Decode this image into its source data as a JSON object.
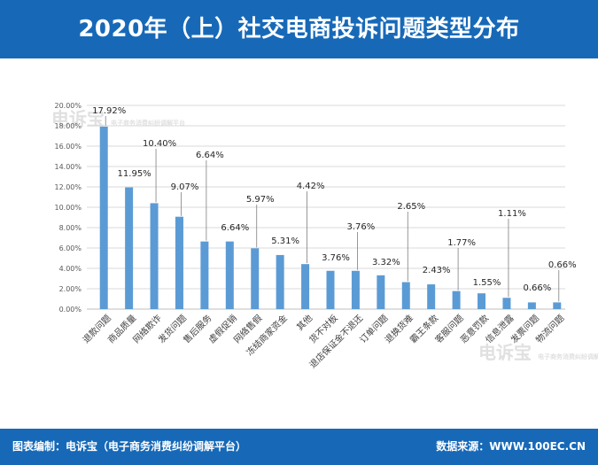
{
  "title": "2020年（上）社交电商投诉问题类型分布",
  "footer": {
    "credit": "图表编制：电诉宝（电子商务消费纠纷调解平台）",
    "source": "数据来源：WWW.100EC.CN"
  },
  "watermark": {
    "name": "电诉宝",
    "tagline": "电子商务消费纠纷调解平台"
  },
  "colors": {
    "header": "#1769b8",
    "bar": "#5b9bd5"
  },
  "chart_data": {
    "type": "bar",
    "title": "",
    "xlabel": "",
    "ylabel": "",
    "ylim": [
      0,
      20
    ],
    "ytick_step": 2,
    "ytick_format": "percent_2dp",
    "grid": true,
    "categories": [
      "退款问题",
      "商品质量",
      "网络欺诈",
      "发货问题",
      "售后服务",
      "虚假促销",
      "网络售假",
      "冻结商家资金",
      "其他",
      "货不对板",
      "退店保证金不退还",
      "订单问题",
      "退换货难",
      "霸王条款",
      "客服问题",
      "恶意罚款",
      "信息泄露",
      "发票问题",
      "物流问题"
    ],
    "values": [
      17.92,
      11.95,
      10.4,
      9.07,
      6.64,
      6.64,
      5.97,
      5.31,
      4.42,
      3.76,
      3.76,
      3.32,
      2.65,
      2.43,
      1.77,
      1.55,
      1.11,
      0.66,
      0.66
    ],
    "data_labels": [
      "17.92%",
      "11.95%",
      "10.40%",
      "9.07%",
      "6.64%",
      "6.64%",
      "5.97%",
      "5.31%",
      "4.42%",
      "3.76%",
      "3.76%",
      "3.32%",
      "2.65%",
      "2.43%",
      "1.77%",
      "1.55%",
      "1.11%",
      "0.66%",
      "0.66%"
    ]
  }
}
